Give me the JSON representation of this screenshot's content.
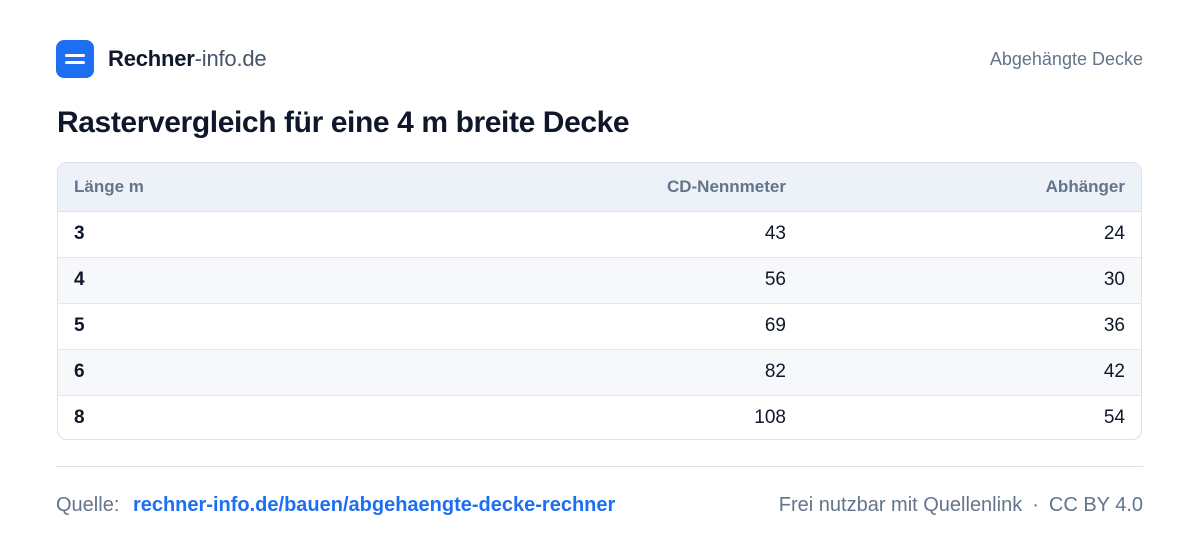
{
  "header": {
    "brand_strong": "Rechner",
    "brand_light": "-info.de",
    "page_label": "Abgehängte Decke"
  },
  "title": "Rastervergleich für eine 4 m breite Decke",
  "table": {
    "columns": [
      "Länge m",
      "CD-Nennmeter",
      "Abhänger"
    ],
    "rows": [
      [
        "3",
        "43",
        "24"
      ],
      [
        "4",
        "56",
        "30"
      ],
      [
        "5",
        "69",
        "36"
      ],
      [
        "6",
        "82",
        "42"
      ],
      [
        "8",
        "108",
        "54"
      ]
    ]
  },
  "footer": {
    "source_label": "Quelle:",
    "source_link": "rechner-info.de/bauen/abgehaengte-decke-rechner",
    "license_text": "Frei nutzbar mit Quellenlink",
    "separator": "·",
    "license": "CC BY 4.0"
  },
  "colors": {
    "accent": "#1d6ff2",
    "header_bg": "#edf2f8",
    "stripe_bg": "#f6f8fb",
    "border": "#dbe2ea"
  },
  "icons": {
    "logo": "logo-icon"
  }
}
